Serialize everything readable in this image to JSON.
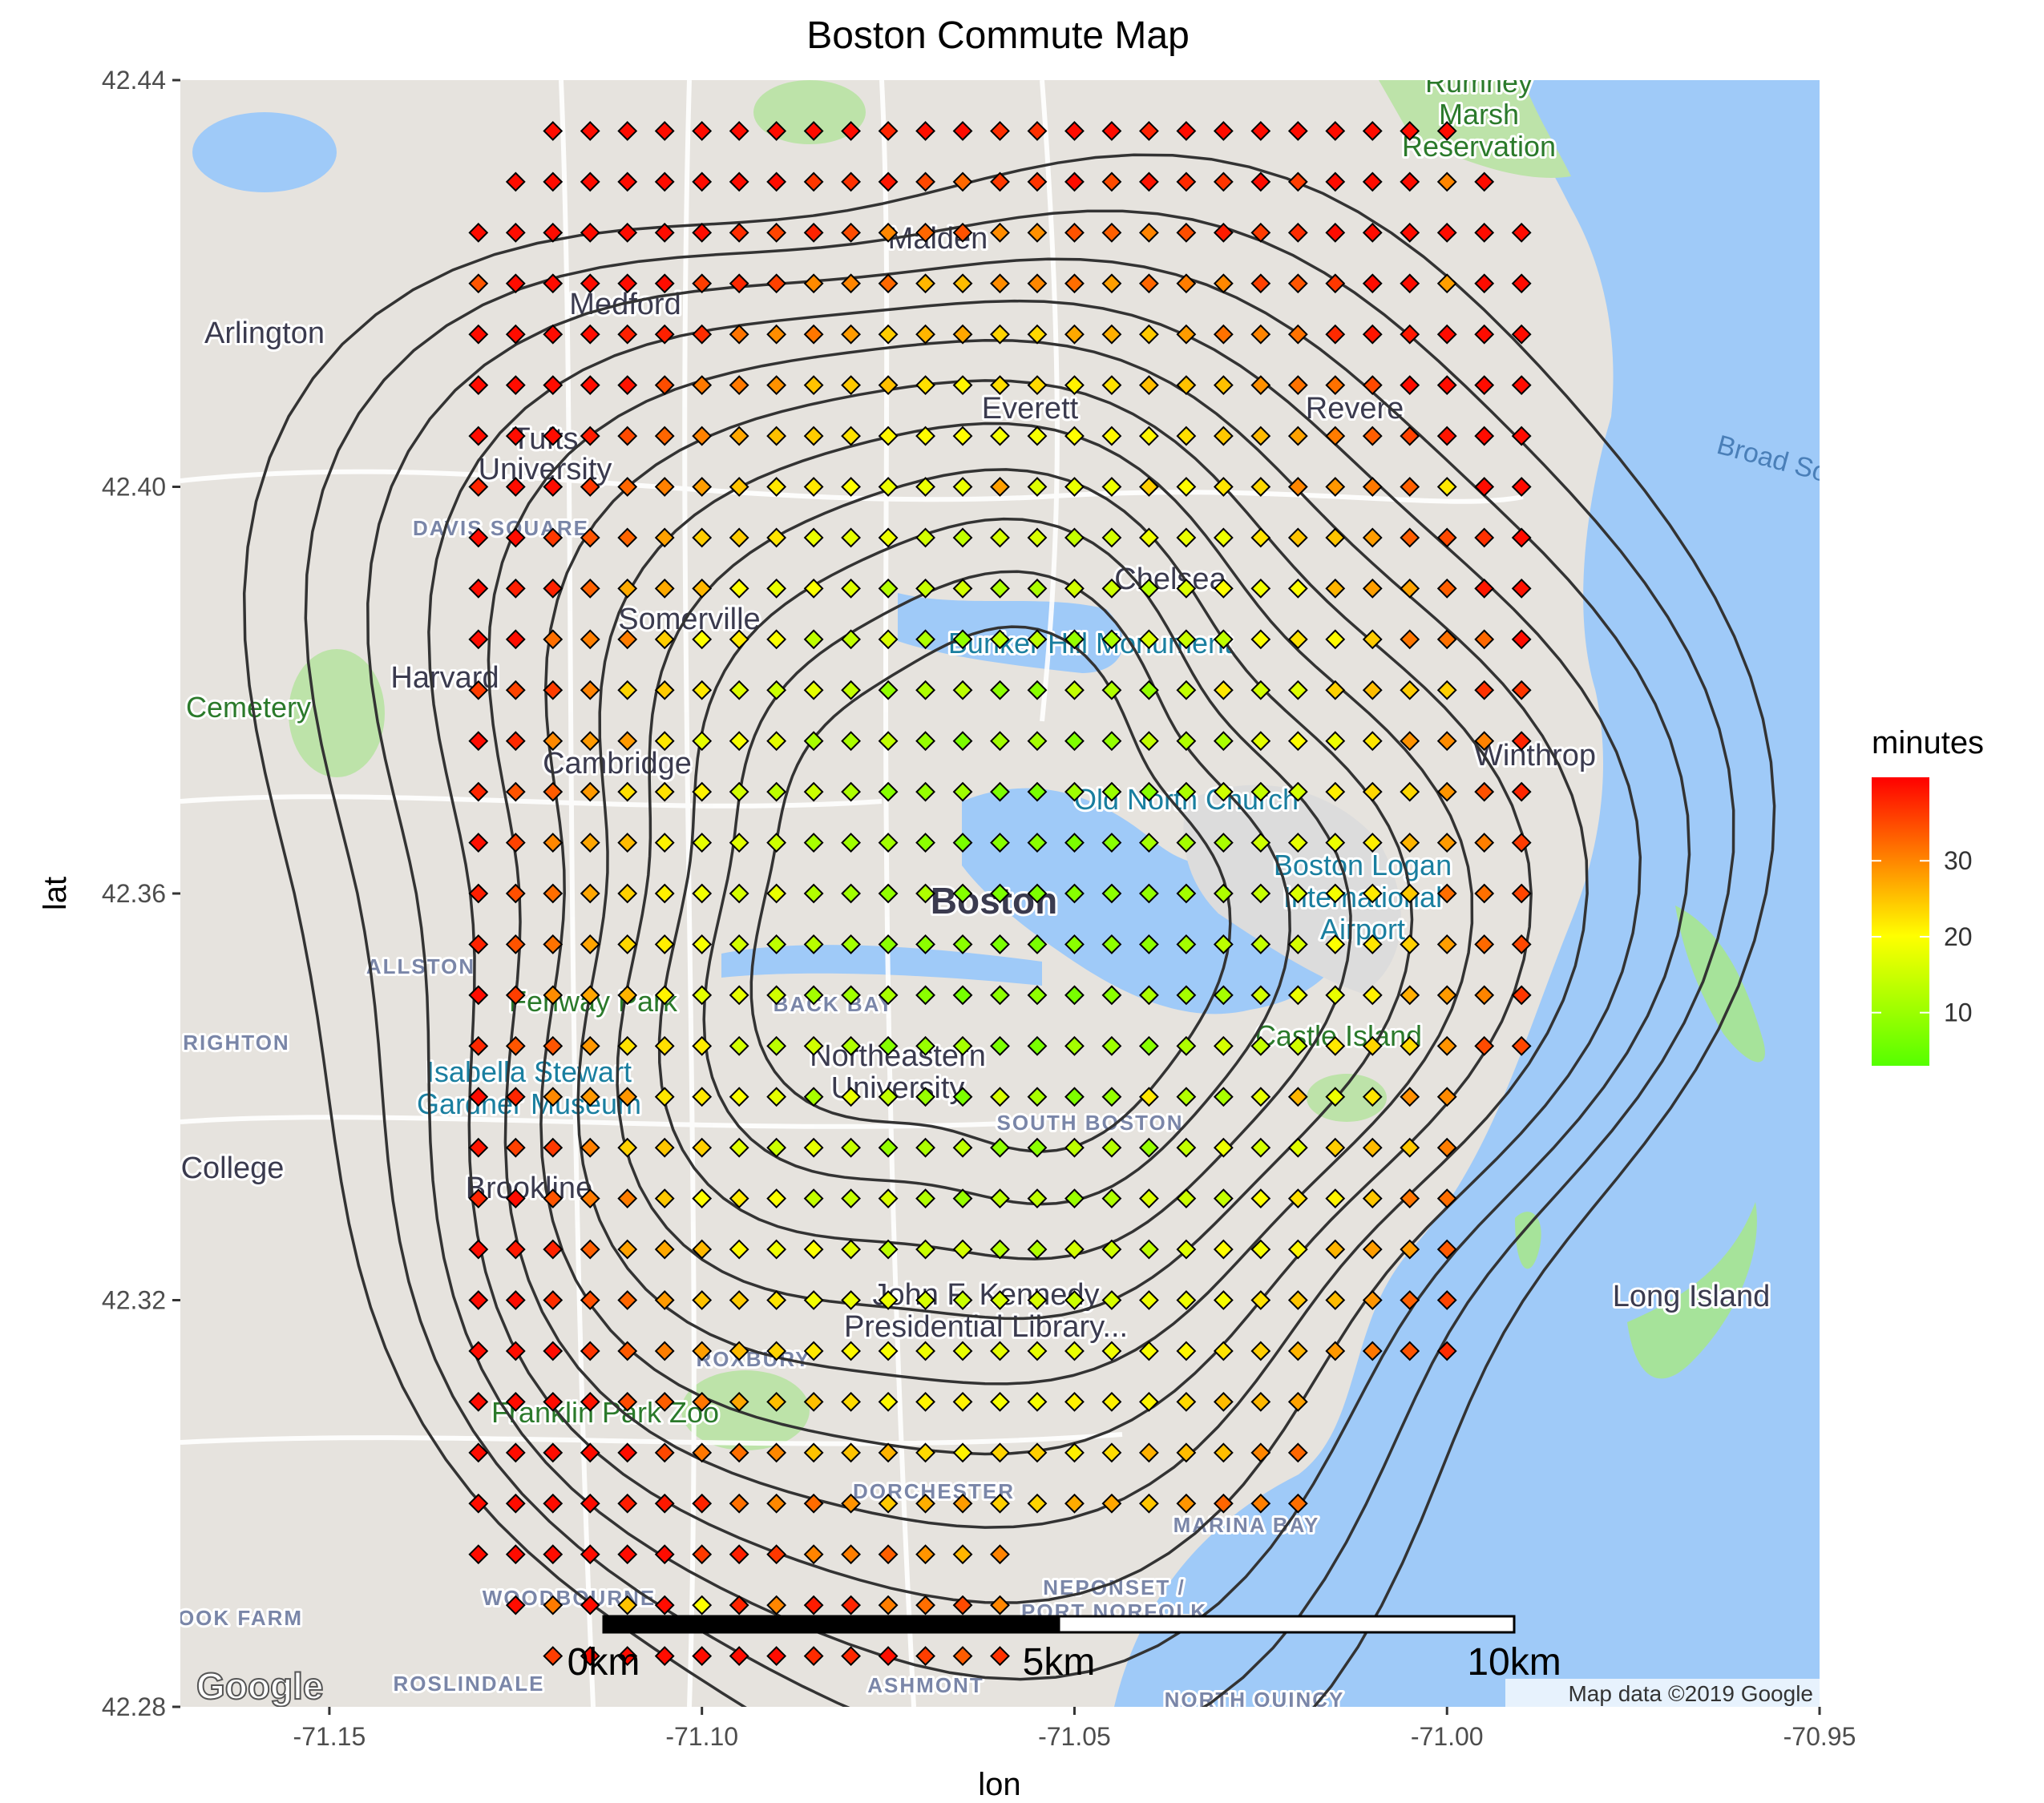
{
  "chart_data": {
    "type": "scatter",
    "title": "Boston Commute Map",
    "xlabel": "lon",
    "ylabel": "lat",
    "xlim": [
      -71.17,
      -70.95
    ],
    "ylim": [
      42.28,
      42.44
    ],
    "x_ticks": [
      -71.15,
      -71.1,
      -71.05,
      -71.0,
      -70.95
    ],
    "x_tick_labels": [
      "-71.15",
      "-71.10",
      "-71.05",
      "-71.00",
      "-70.95"
    ],
    "y_ticks": [
      42.28,
      42.32,
      42.36,
      42.4,
      42.44
    ],
    "y_tick_labels": [
      "42.28",
      "42.32",
      "42.36",
      "42.40",
      "42.44"
    ],
    "color_scale": {
      "title": "minutes",
      "low_color": "#55ff00",
      "mid_color": "#ffff00",
      "high_color": "#ff0000",
      "range": [
        3,
        41
      ],
      "breaks": [
        10,
        20,
        30
      ],
      "break_labels": [
        "10",
        "20",
        "30"
      ]
    },
    "grid": {
      "lon_start": -71.13,
      "lon_step": 0.005,
      "lon_count": 29,
      "lat_start": 42.285,
      "lat_step": 0.005,
      "lat_count": 31
    },
    "points_note": "regular grid of lon/lat points; value = commute minutes to downtown Boston (~-71.06, 42.36)",
    "points": [
      [
        -71.13,
        42.285,
        34
      ],
      [
        -71.12,
        42.285,
        36
      ],
      [
        -71.13,
        42.29,
        33
      ],
      [
        -71.12,
        42.29,
        31
      ],
      [
        -71.11,
        42.29,
        25
      ],
      [
        -71.1,
        42.29,
        20
      ],
      [
        -71.09,
        42.29,
        30
      ],
      [
        -71.08,
        42.29,
        38
      ],
      [
        -71.07,
        42.29,
        32
      ],
      [
        -71.06,
        42.29,
        30
      ],
      [
        -71.05,
        42.3,
        27
      ],
      [
        -71.13,
        42.33,
        38
      ],
      [
        -71.12,
        42.33,
        34
      ],
      [
        -71.1,
        42.34,
        22
      ],
      [
        -71.08,
        42.34,
        18
      ],
      [
        -71.06,
        42.34,
        16
      ],
      [
        -71.04,
        42.34,
        22
      ],
      [
        -71.02,
        42.34,
        26
      ],
      [
        -71.12,
        42.36,
        32
      ],
      [
        -71.09,
        42.36,
        18
      ],
      [
        -71.07,
        42.36,
        12
      ],
      [
        -71.05,
        42.36,
        8
      ],
      [
        -71.03,
        42.36,
        12
      ],
      [
        -71.0,
        42.36,
        32
      ],
      [
        -70.99,
        42.37,
        38
      ],
      [
        -71.13,
        42.38,
        36
      ],
      [
        -71.1,
        42.38,
        22
      ],
      [
        -71.07,
        42.38,
        12
      ],
      [
        -71.05,
        42.38,
        14
      ],
      [
        -71.03,
        42.38,
        22
      ],
      [
        -71.0,
        42.38,
        24
      ],
      [
        -71.13,
        42.4,
        38
      ],
      [
        -71.12,
        42.4,
        40
      ],
      [
        -71.09,
        42.4,
        22
      ],
      [
        -71.06,
        42.4,
        28
      ],
      [
        -71.04,
        42.4,
        24
      ],
      [
        -71.02,
        42.4,
        30
      ],
      [
        -71.0,
        42.4,
        22
      ],
      [
        -71.13,
        42.42,
        34
      ],
      [
        -71.12,
        42.42,
        40
      ],
      [
        -71.1,
        42.42,
        36
      ],
      [
        -71.07,
        42.42,
        26
      ],
      [
        -71.05,
        42.42,
        32
      ],
      [
        -71.02,
        42.42,
        34
      ],
      [
        -71.0,
        42.42,
        28
      ],
      [
        -71.05,
        42.43,
        40
      ],
      [
        -71.02,
        42.43,
        36
      ],
      [
        -71.0,
        42.43,
        30
      ]
    ],
    "overlays": {
      "basemap": "Google terrain map of Boston area",
      "contours": "density contour lines (black)",
      "scale_bar": {
        "labels": [
          "0km",
          "5km",
          "10km"
        ]
      }
    }
  },
  "map_labels": {
    "medford": "Medford",
    "malden": "Malden",
    "arlington": "Arlington",
    "everett": "Everett",
    "revere": "Revere",
    "somerville": "Somerville",
    "chelsea": "Chelsea",
    "tufts": "Tufts",
    "university": "University",
    "davis_square": "DAVIS SQUARE",
    "harvard": "Harvard",
    "cemetery": "Cemetery",
    "cambridge": "Cambridge",
    "bunker_hill": "Bunker Hill Monument",
    "old_north_church": "Old North Church",
    "boston": "Boston",
    "logan_1": "Boston Logan",
    "logan_2": "International",
    "logan_3": "Airport",
    "winthrop": "Winthrop",
    "allston": "ALLSTON",
    "brighton": "RIGHTON",
    "fenway": "Fenway Park",
    "back_bay": "BACK BAY",
    "castle_island": "Castle Island",
    "gardner_1": "Isabella Stewart",
    "gardner_2": "Gardner Museum",
    "northeastern_1": "Northeastern",
    "northeastern_2": "University",
    "south_boston": "SOUTH BOSTON",
    "college": "College",
    "brookline": "Brookline",
    "jfk_1": "John F. Kennedy",
    "jfk_2": "Presidential Library...",
    "long_island": "Long Island",
    "roxbury": "ROXBURY",
    "franklin_park": "Franklin Park Zoo",
    "dorchester": "DORCHESTER",
    "marina_bay": "MARINA BAY",
    "rumney_1": "Rumney",
    "rumney_2": "Marsh",
    "rumney_3": "Reservation",
    "broad_sound": "Broad So",
    "ashmont": "ASHMONT",
    "north_quincy": "NORTH QUINCY",
    "roslindale": "ROSLINDALE",
    "ok_farm": "OOK FARM",
    "neponset": "NEPONSET /",
    "port_norfolk": "PORT NORFOLK",
    "woodbourne": "WOODBOURNE"
  },
  "credits": {
    "map_data": "Map data ©2019 Google",
    "google": "Google"
  }
}
